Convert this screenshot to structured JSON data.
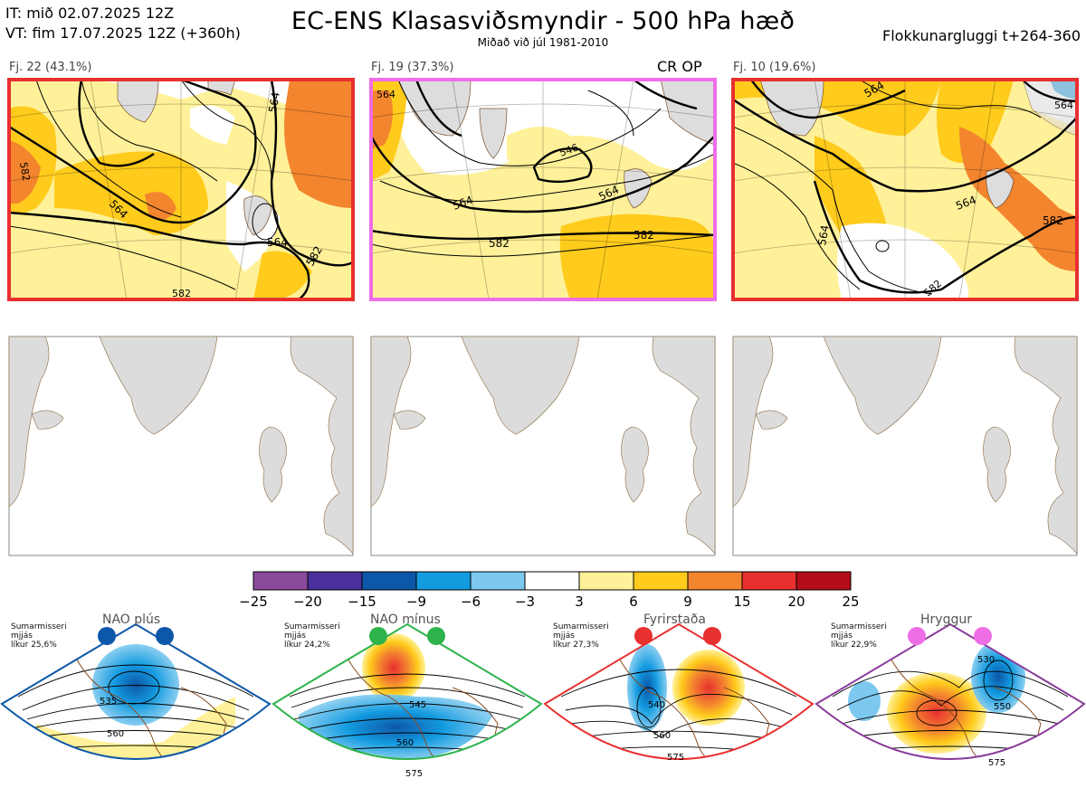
{
  "header": {
    "it_line": "IT: mið 02.07.2025 12Z",
    "vt_line": "VT: fim 17.07.2025 12Z  (+360h)",
    "title": "EC-ENS Klasasviðsmyndir - 500 hPa hæð",
    "subtitle": "Miðað við júl 1981-2010",
    "window": "Flokkunargluggi t+264-360"
  },
  "clusters": [
    {
      "label": "Fj. 22 (43.1%)",
      "frame_color": "#e8302f",
      "contours": [
        "564",
        "564",
        "582",
        "564",
        "582",
        "582"
      ]
    },
    {
      "label": "Fj. 19 (37.3%)",
      "frame_color": "#ee6ee8",
      "badge": "CR OP",
      "contours": [
        "564",
        "546",
        "564",
        "582",
        "564",
        "582"
      ]
    },
    {
      "label": "Fj. 10 (19.6%)",
      "frame_color": "#e8302f",
      "contours": [
        "564",
        "564",
        "564",
        "582",
        "564",
        "582"
      ]
    }
  ],
  "colorbar": {
    "ticks": [
      "−25",
      "−20",
      "−15",
      "−9",
      "−6",
      "−3",
      "3",
      "6",
      "9",
      "15",
      "20",
      "25"
    ],
    "colors": [
      "#8b4b9c",
      "#49309a",
      "#0d57a8",
      "#139be0",
      "#7cc8ef",
      "#ffffff",
      "#fff199",
      "#ffcb1c",
      "#f3852f",
      "#e8302f",
      "#b30d19"
    ]
  },
  "regimes": [
    {
      "name": "NAO plús",
      "season": "Sumarmisseri",
      "mean": "mjjás",
      "probability": "líkur 25,6%",
      "dot_color": "#0d57a8",
      "frame_color": "#0d57a8",
      "contours": [
        "535",
        "560"
      ]
    },
    {
      "name": "NAO mínus",
      "season": "Sumarmisseri",
      "mean": "mjjás",
      "probability": "líkur 24,2%",
      "dot_color": "#2db34a",
      "frame_color": "#2db34a",
      "contours": [
        "545",
        "560",
        "575"
      ]
    },
    {
      "name": "Fyrirstaða",
      "season": "Sumarmisseri",
      "mean": "mjjás",
      "probability": "líkur 27,3%",
      "dot_color": "#e8302f",
      "frame_color": "#e8302f",
      "contours": [
        "540",
        "560",
        "575"
      ]
    },
    {
      "name": "Hryggur",
      "season": "Sumarmisseri",
      "mean": "mjjás",
      "probability": "líkur 22,9%",
      "dot_color": "#ee6ee8",
      "frame_color": "#8a3a9a",
      "contours": [
        "530",
        "550",
        "575"
      ]
    }
  ]
}
